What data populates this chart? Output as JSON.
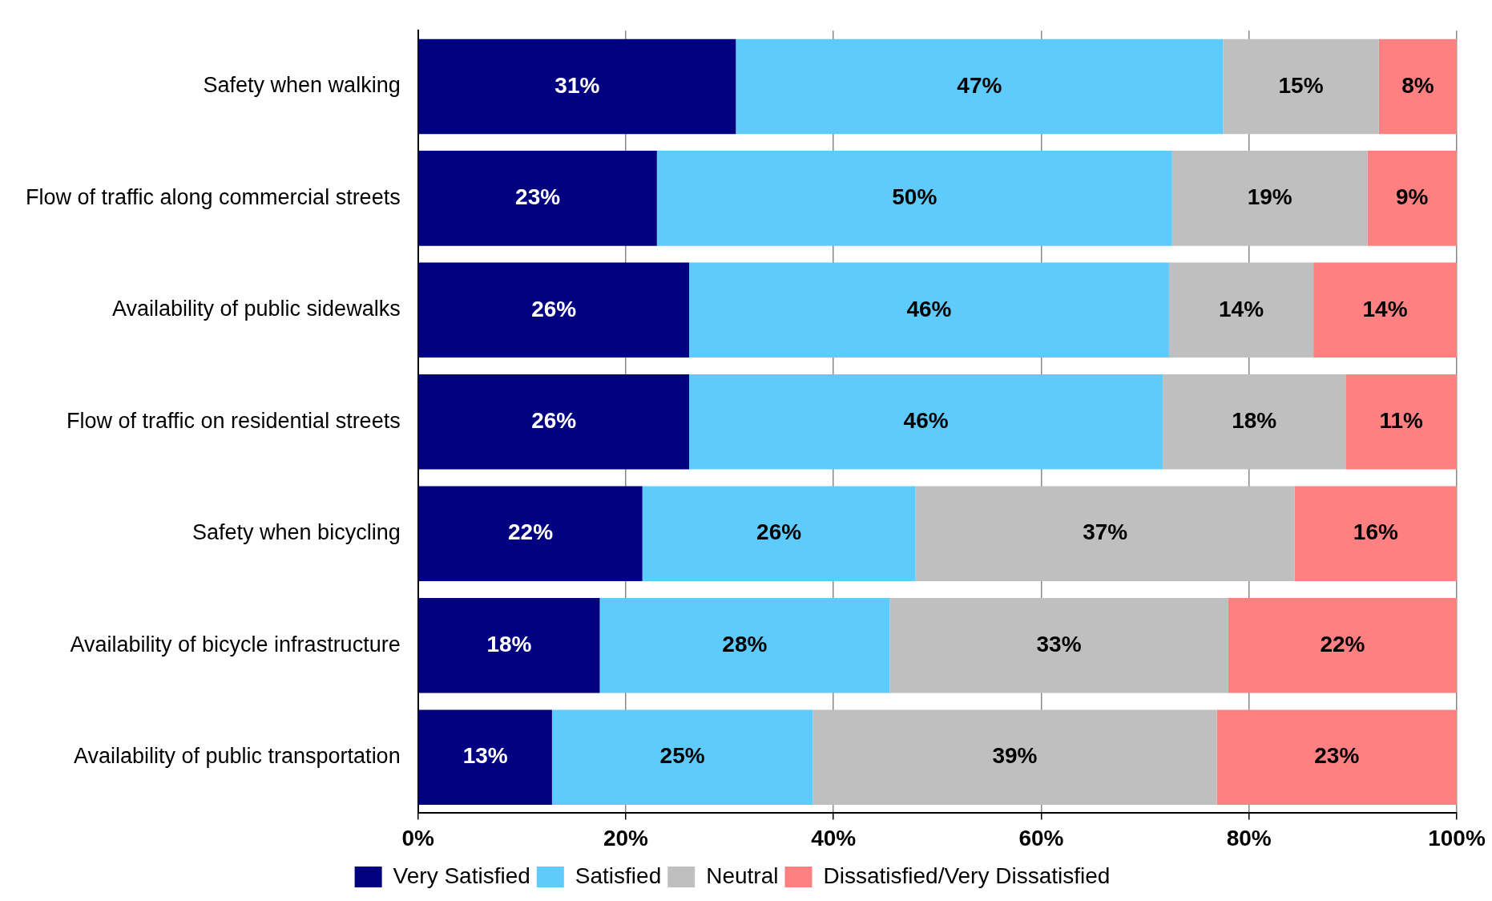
{
  "chart_data": {
    "type": "bar",
    "orientation": "horizontal",
    "stacked": true,
    "categories": [
      "Safety when walking",
      "Flow of traffic along commercial streets",
      "Availability of public sidewalks",
      "Flow of traffic on residential streets",
      "Safety when bicycling",
      "Availability of bicycle infrastructure",
      "Availability of public transportation"
    ],
    "series": [
      {
        "name": "Very Satisfied",
        "color": "#000080",
        "values": [
          30.6,
          23.0,
          26.1,
          26.1,
          21.6,
          17.5,
          12.9
        ],
        "value_labels": [
          "31%",
          "23%",
          "26%",
          "26%",
          "22%",
          "18%",
          "13%"
        ]
      },
      {
        "name": "Satisfied",
        "color": "#5ecbfd",
        "values": [
          46.9,
          49.6,
          46.2,
          45.6,
          26.3,
          27.9,
          25.1
        ],
        "value_labels": [
          "47%",
          "50%",
          "46%",
          "46%",
          "26%",
          "28%",
          "25%"
        ]
      },
      {
        "name": "Neutral",
        "color": "#bfbfbf",
        "values": [
          15.0,
          18.8,
          13.9,
          17.6,
          36.5,
          32.6,
          38.9
        ],
        "value_labels": [
          "15%",
          "19%",
          "14%",
          "18%",
          "37%",
          "33%",
          "39%"
        ]
      },
      {
        "name": "Dissatisfied/Very Dissatisfied",
        "color": "#ff8080",
        "values": [
          7.5,
          8.6,
          13.8,
          10.7,
          15.6,
          22.0,
          23.1
        ],
        "value_labels": [
          "8%",
          "9%",
          "14%",
          "11%",
          "16%",
          "22%",
          "23%"
        ]
      }
    ],
    "xlim": [
      0,
      100
    ],
    "xticks": [
      {
        "value": 0,
        "label": "0%"
      },
      {
        "value": 20,
        "label": "20%"
      },
      {
        "value": 40,
        "label": "40%"
      },
      {
        "value": 60,
        "label": "60%"
      },
      {
        "value": 80,
        "label": "80%"
      },
      {
        "value": 100,
        "label": "100%"
      }
    ],
    "grid": "x",
    "legend": "bottom"
  }
}
